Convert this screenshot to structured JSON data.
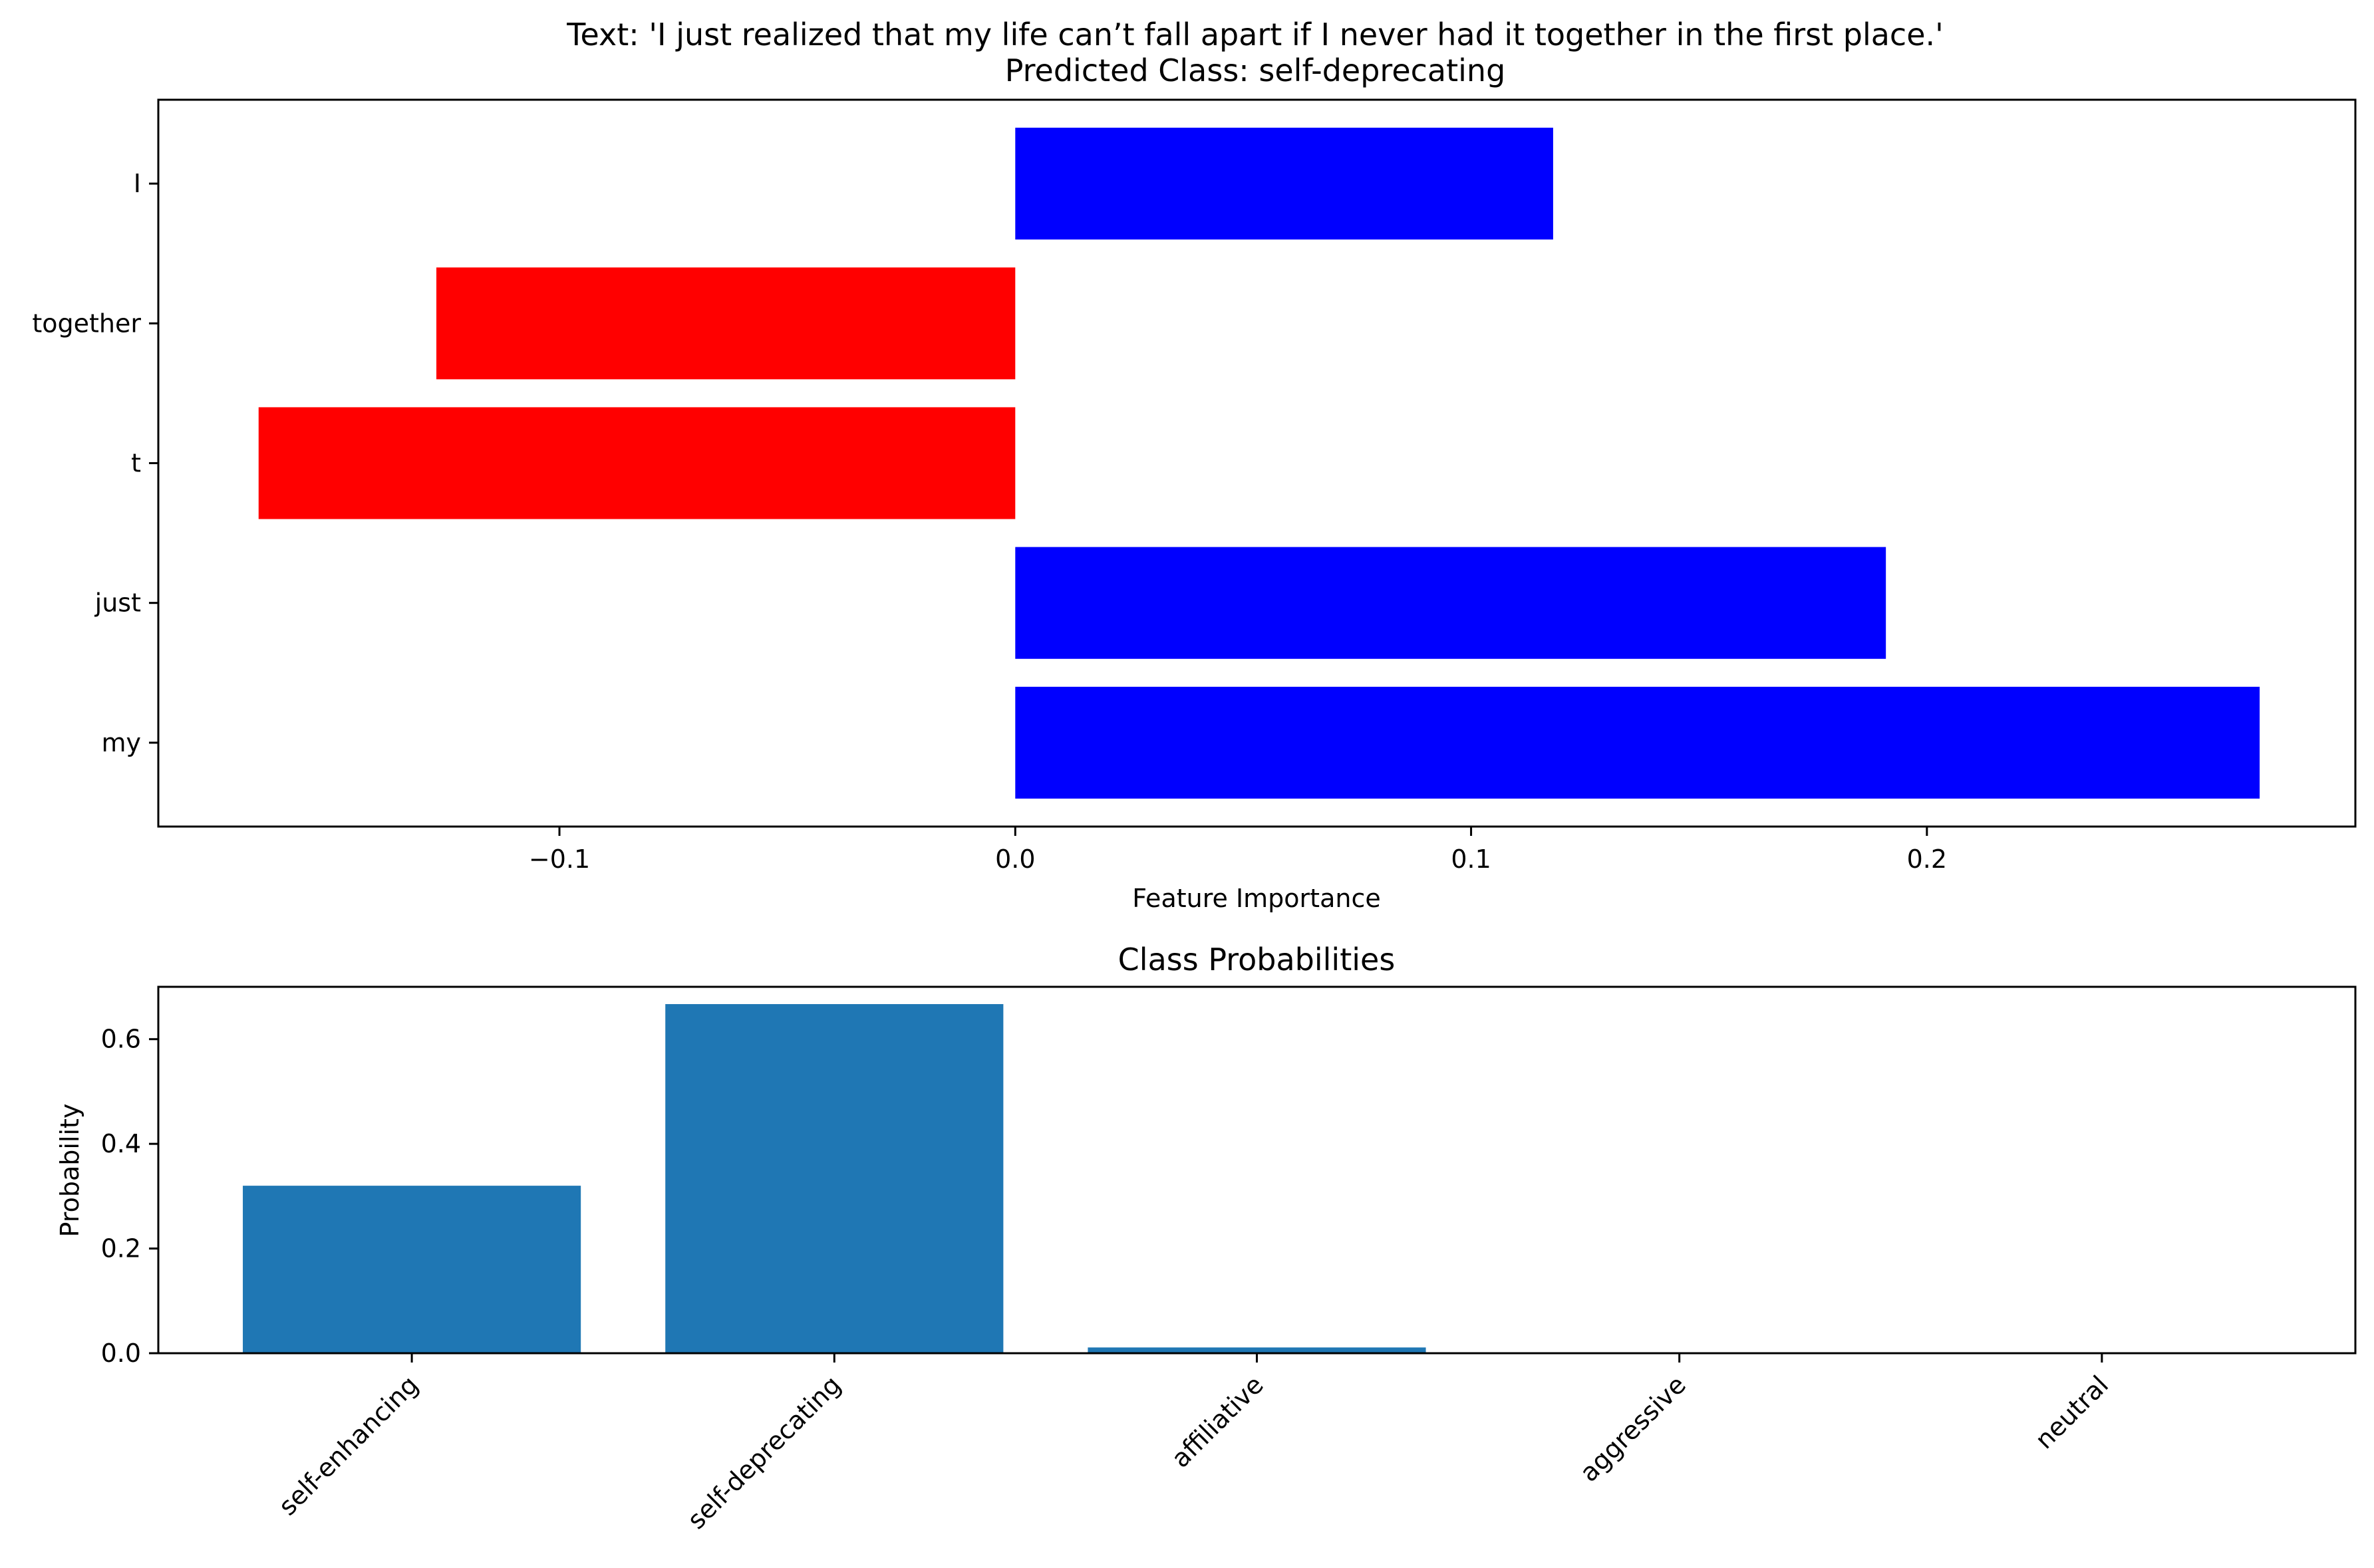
{
  "chart_data": [
    {
      "type": "bar",
      "orientation": "horizontal",
      "title": "Text: 'I just realized that my life can’t fall apart if I never had it together in the first place.'",
      "subtitle": "Predicted Class: self-deprecating",
      "xlabel": "Feature Importance",
      "ylabel": "",
      "categories": [
        "I",
        "together",
        "t",
        "just",
        "my"
      ],
      "values": [
        0.118,
        -0.127,
        -0.166,
        0.191,
        0.273
      ],
      "colors": [
        "#0000ff",
        "#ff0000",
        "#ff0000",
        "#0000ff",
        "#0000ff"
      ],
      "xlim": [
        -0.188,
        0.294
      ],
      "xticks": [
        -0.1,
        0.0,
        0.1,
        0.2
      ],
      "xtick_labels": [
        "−0.1",
        "0.0",
        "0.1",
        "0.2"
      ],
      "grid": false
    },
    {
      "type": "bar",
      "orientation": "vertical",
      "title": "Class Probabilities",
      "xlabel": "",
      "ylabel": "Probability",
      "categories": [
        "self-enhancing",
        "self-deprecating",
        "affiliative",
        "aggressive",
        "neutral"
      ],
      "values": [
        0.32,
        0.667,
        0.011,
        0.001,
        0.001
      ],
      "color": "#1f77b4",
      "ylim": [
        0,
        0.7
      ],
      "yticks": [
        0.0,
        0.2,
        0.4,
        0.6
      ],
      "ytick_labels": [
        "0.0",
        "0.2",
        "0.4",
        "0.6"
      ],
      "xtick_rotation": 45,
      "grid": false
    }
  ]
}
